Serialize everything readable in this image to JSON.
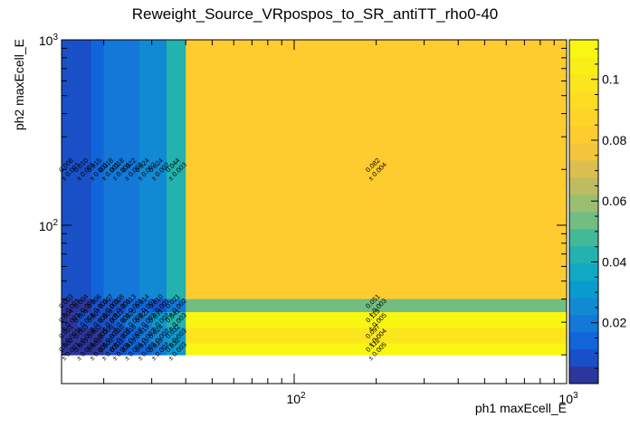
{
  "chart_data": {
    "type": "heatmap",
    "title": "Reweight_Source_VRpospos_to_SR_antiTT_rho0-40",
    "xlabel": "ph1 maxEcell_E",
    "ylabel": "ph2 maxEcell_E",
    "x_scale": "log",
    "y_scale": "log",
    "xlim": [
      14,
      1000
    ],
    "ylim": [
      14,
      1000
    ],
    "x_tick_labels": [
      {
        "value": 100,
        "label": "10²"
      },
      {
        "value": 1000,
        "label": "10³"
      }
    ],
    "y_tick_labels": [
      {
        "value": 100,
        "label": "10²"
      },
      {
        "value": 1000,
        "label": "10³"
      }
    ],
    "x_edges": [
      14,
      16,
      18,
      20,
      22,
      24,
      27,
      30,
      34,
      40,
      1000
    ],
    "y_edges": [
      14,
      17,
      20,
      23,
      28,
      34,
      40,
      1000
    ],
    "z_range": [
      0,
      0.113
    ],
    "colorbar_ticks": [
      {
        "value": 0.02,
        "label": "0.02"
      },
      {
        "value": 0.04,
        "label": "0.04"
      },
      {
        "value": 0.06,
        "label": "0.06"
      },
      {
        "value": 0.08,
        "label": "0.08"
      },
      {
        "value": 0.1,
        "label": "0.1"
      }
    ],
    "cells": [
      {
        "xi": 0,
        "yi": 6,
        "value": 0.008,
        "label": "0.008",
        "error": "± 0.001"
      },
      {
        "xi": 1,
        "yi": 6,
        "value": 0.01,
        "label": "0.010",
        "error": "± 0.001"
      },
      {
        "xi": 2,
        "yi": 6,
        "value": 0.015,
        "label": "0.015",
        "error": "± 0.001"
      },
      {
        "xi": 3,
        "yi": 6,
        "value": 0.018,
        "label": "0.018",
        "error": "± 0.001"
      },
      {
        "xi": 4,
        "yi": 6,
        "value": 0.018,
        "label": "0.018",
        "error": "± 0.001"
      },
      {
        "xi": 5,
        "yi": 6,
        "value": 0.022,
        "label": "0.022",
        "error": "± 0.002"
      },
      {
        "xi": 6,
        "yi": 6,
        "value": 0.024,
        "label": "0.024",
        "error": "± 0.002"
      },
      {
        "xi": 7,
        "yi": 6,
        "value": 0.024,
        "label": "0.024",
        "error": "± 0.002"
      },
      {
        "xi": 8,
        "yi": 6,
        "value": 0.044,
        "label": "0.044",
        "error": "± 0.003"
      },
      {
        "xi": 9,
        "yi": 6,
        "value": 0.082,
        "label": "0.082",
        "error": "± 0.004"
      },
      {
        "xi": 0,
        "yi": 5,
        "value": 0.003,
        "label": "0.003",
        "error": "± 0.001"
      },
      {
        "xi": 1,
        "yi": 5,
        "value": 0.004,
        "label": "0.004",
        "error": "± 0.001"
      },
      {
        "xi": 2,
        "yi": 5,
        "value": 0.006,
        "label": "0.006",
        "error": "± 0.001"
      },
      {
        "xi": 3,
        "yi": 5,
        "value": 0.007,
        "label": "0.007",
        "error": "± 0.001"
      },
      {
        "xi": 4,
        "yi": 5,
        "value": 0.008,
        "label": "0.008",
        "error": "± 0.001"
      },
      {
        "xi": 5,
        "yi": 5,
        "value": 0.013,
        "label": "0.013",
        "error": "± 0.001"
      },
      {
        "xi": 6,
        "yi": 5,
        "value": 0.014,
        "label": "0.014",
        "error": "± 0.001"
      },
      {
        "xi": 7,
        "yi": 5,
        "value": 0.01,
        "label": "0.010",
        "error": "± 0.001"
      },
      {
        "xi": 8,
        "yi": 5,
        "value": 0.021,
        "label": "0.021",
        "error": "± 0.002"
      },
      {
        "xi": 9,
        "yi": 5,
        "value": 0.051,
        "label": "0.051",
        "error": "± 0.003"
      },
      {
        "xi": 0,
        "yi": 4,
        "value": 0.004,
        "label": "0.004",
        "error": "± 0.001"
      },
      {
        "xi": 1,
        "yi": 4,
        "value": 0.006,
        "label": "0.006",
        "error": "± 0.001"
      },
      {
        "xi": 2,
        "yi": 4,
        "value": 0.007,
        "label": "0.007",
        "error": "± 0.001"
      },
      {
        "xi": 3,
        "yi": 4,
        "value": 0.009,
        "label": "0.009",
        "error": "± 0.001"
      },
      {
        "xi": 4,
        "yi": 4,
        "value": 0.012,
        "label": "0.012",
        "error": "± 0.001"
      },
      {
        "xi": 5,
        "yi": 4,
        "value": 0.02,
        "label": "0.020",
        "error": "± 0.002"
      },
      {
        "xi": 6,
        "yi": 4,
        "value": 0.021,
        "label": "0.021",
        "error": "± 0.002"
      },
      {
        "xi": 7,
        "yi": 4,
        "value": 0.031,
        "label": "0.031",
        "error": "± 0.002"
      },
      {
        "xi": 8,
        "yi": 4,
        "value": 0.041,
        "label": "0.041",
        "error": "± 0.003"
      },
      {
        "xi": 9,
        "yi": 4,
        "value": 0.113,
        "label": "0.113",
        "error": "± 0.005"
      },
      {
        "xi": 0,
        "yi": 3,
        "value": 0.001,
        "label": "0.001",
        "error": "± 0.001"
      },
      {
        "xi": 1,
        "yi": 3,
        "value": 0.003,
        "label": "0.003",
        "error": "± 0.001"
      },
      {
        "xi": 2,
        "yi": 3,
        "value": 0.003,
        "label": "0.003",
        "error": "± 0.001"
      },
      {
        "xi": 3,
        "yi": 3,
        "value": 0.006,
        "label": "0.006",
        "error": "± 0.001"
      },
      {
        "xi": 4,
        "yi": 3,
        "value": 0.01,
        "label": "0.010",
        "error": "± 0.001"
      },
      {
        "xi": 5,
        "yi": 3,
        "value": 0.016,
        "label": "0.016",
        "error": "± 0.001"
      },
      {
        "xi": 6,
        "yi": 3,
        "value": 0.019,
        "label": "0.019",
        "error": "± 0.002"
      },
      {
        "xi": 7,
        "yi": 3,
        "value": 0.024,
        "label": "0.024",
        "error": "± 0.002"
      },
      {
        "xi": 8,
        "yi": 3,
        "value": 0.032,
        "label": "0.032",
        "error": "± 0.003"
      },
      {
        "xi": 9,
        "yi": 3,
        "value": 0.097,
        "label": "0.097",
        "error": "± 0.004"
      },
      {
        "xi": 0,
        "yi": 2,
        "value": 0.002,
        "label": "0.002",
        "error": "± 0.001"
      },
      {
        "xi": 1,
        "yi": 2,
        "value": 0.003,
        "label": "0.003",
        "error": "± 0.001"
      },
      {
        "xi": 2,
        "yi": 2,
        "value": 0.003,
        "label": "0.003",
        "error": "± 0.001"
      },
      {
        "xi": 3,
        "yi": 2,
        "value": 0.006,
        "label": "0.006",
        "error": "± 0.001"
      },
      {
        "xi": 4,
        "yi": 2,
        "value": 0.011,
        "label": "0.011",
        "error": "± 0.001"
      },
      {
        "xi": 5,
        "yi": 2,
        "value": 0.013,
        "label": "0.013",
        "error": "± 0.001"
      },
      {
        "xi": 6,
        "yi": 2,
        "value": 0.015,
        "label": "0.015",
        "error": "± 0.002"
      },
      {
        "xi": 7,
        "yi": 2,
        "value": 0.019,
        "label": "0.019",
        "error": "± 0.002"
      },
      {
        "xi": 8,
        "yi": 2,
        "value": 0.032,
        "label": "0.032",
        "error": "± 0.003"
      },
      {
        "xi": 9,
        "yi": 2,
        "value": 0.112,
        "label": "0.112",
        "error": "± 0.005"
      }
    ]
  }
}
